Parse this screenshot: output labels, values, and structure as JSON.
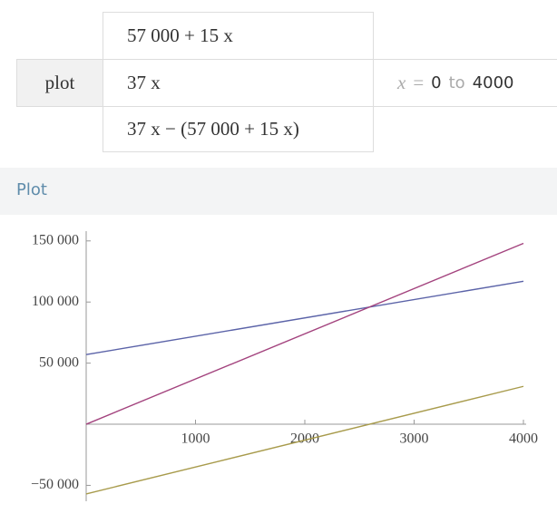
{
  "input": {
    "label": "plot",
    "functions": [
      "57 000 + 15 x",
      "37 x",
      "37 x − (57 000 + 15 x)"
    ],
    "range": {
      "variable": "x",
      "relation": "=",
      "from": "0",
      "word": "to",
      "to": "4000"
    }
  },
  "section_title": "Plot",
  "chart_data": {
    "type": "line",
    "x": [
      0,
      4000
    ],
    "series": [
      {
        "color": "#5b63a8",
        "values": [
          57000,
          117000
        ]
      },
      {
        "color": "#a3437e",
        "values": [
          0,
          148000
        ]
      },
      {
        "color": "#a89b4c",
        "values": [
          -57000,
          31000
        ]
      }
    ],
    "xlim": [
      0,
      4000
    ],
    "ylim": [
      -63000,
      158000
    ],
    "xticks": [
      1000,
      2000,
      3000,
      4000
    ],
    "yticks": [
      {
        "value": -50000,
        "label": "−50 000"
      },
      {
        "value": 50000,
        "label": "50 000"
      },
      {
        "value": 100000,
        "label": "100 000"
      },
      {
        "value": 150000,
        "label": "150 000"
      }
    ],
    "grid": false
  }
}
